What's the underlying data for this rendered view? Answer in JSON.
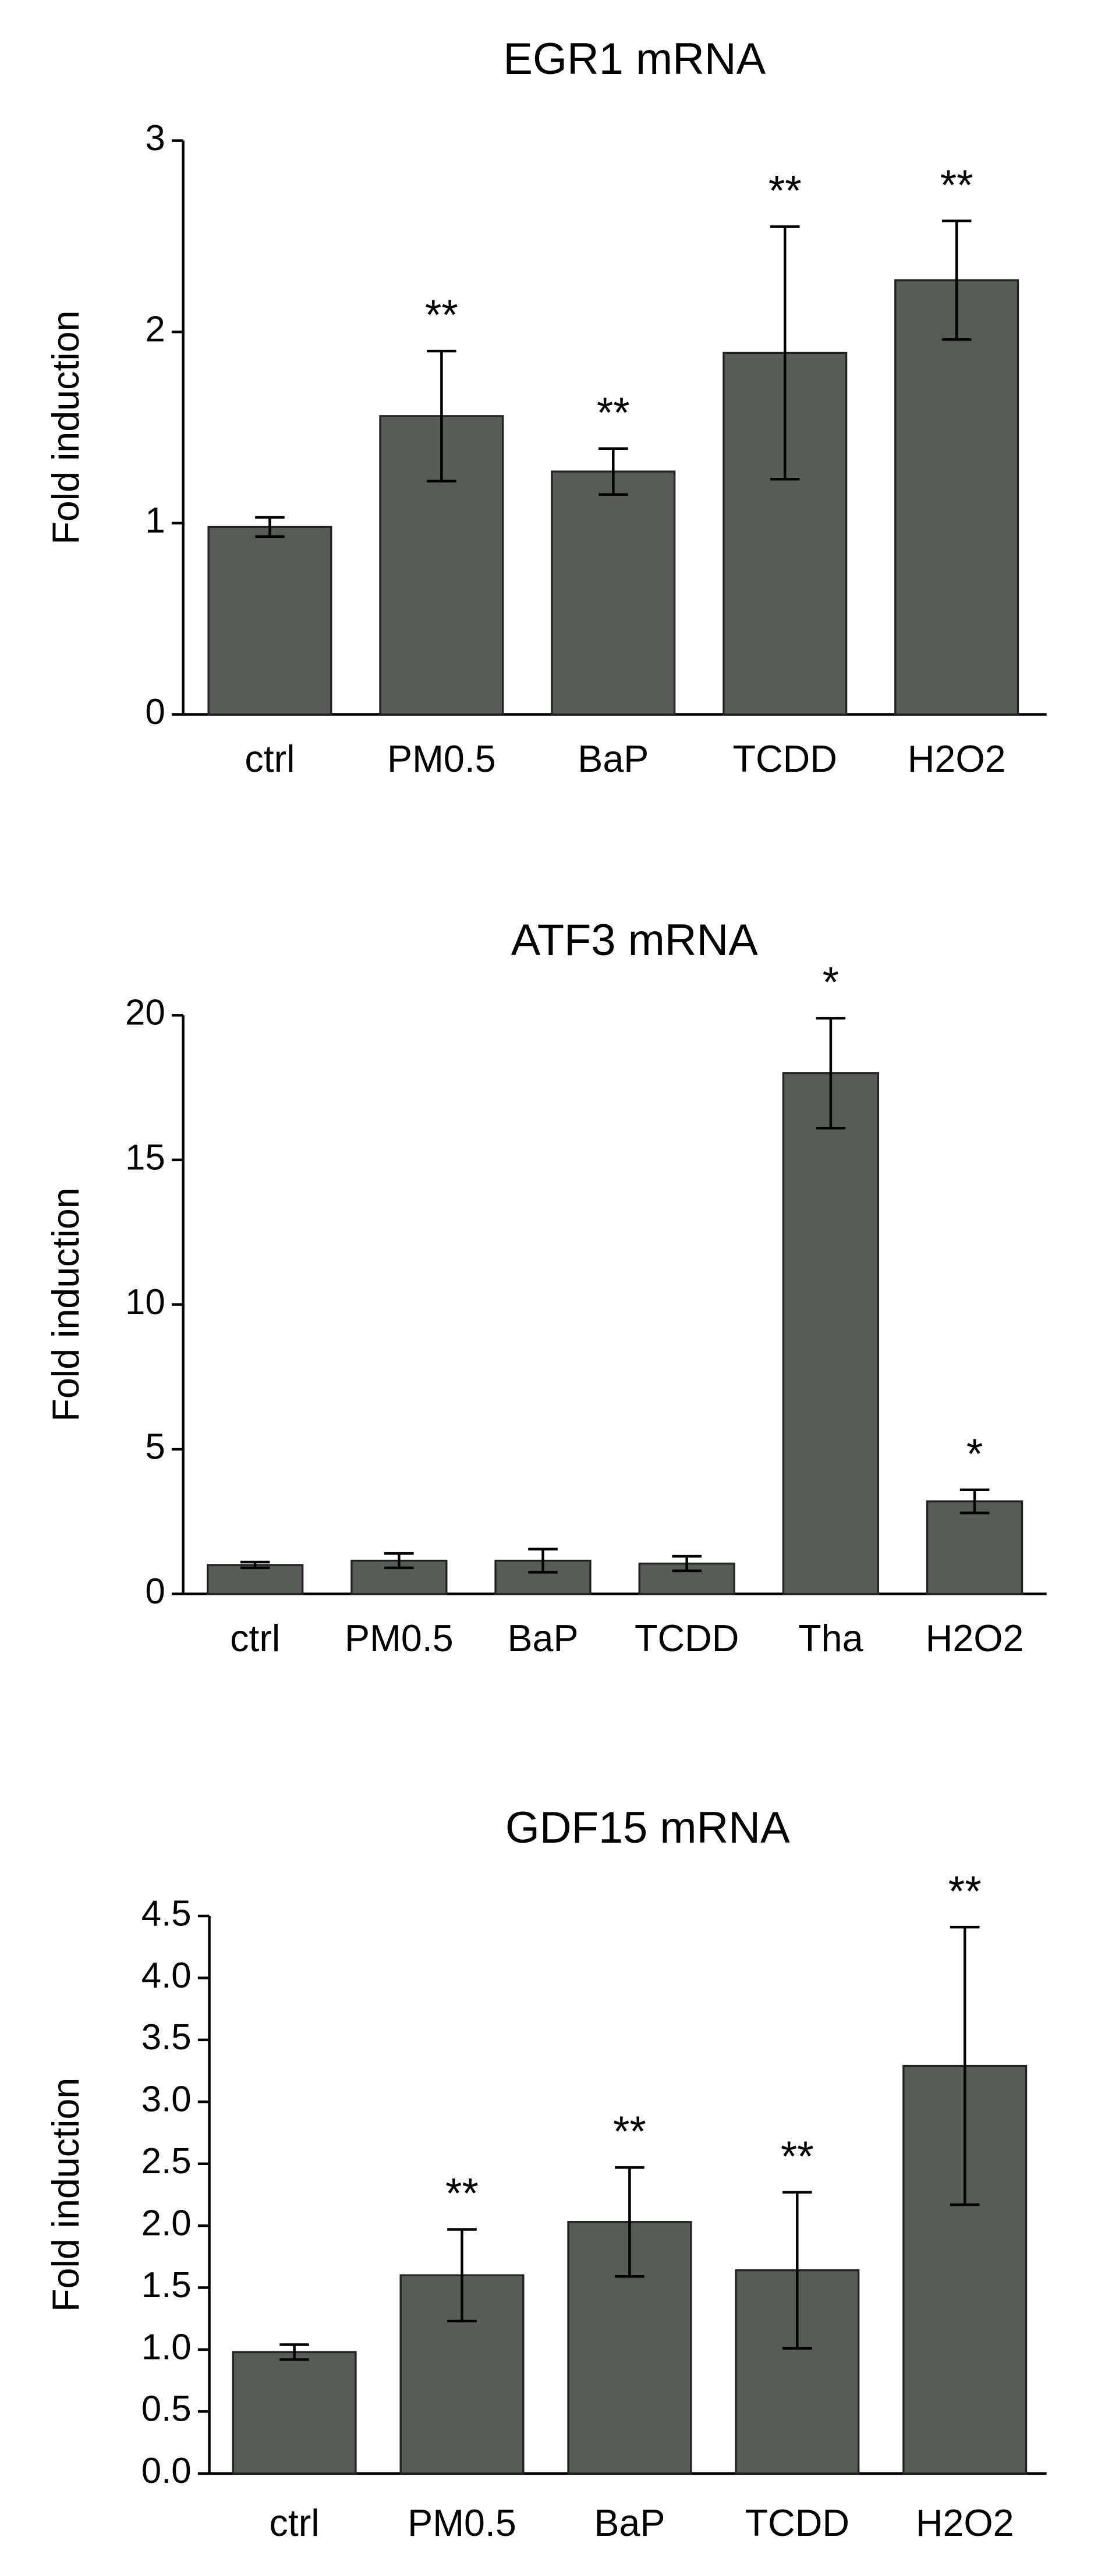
{
  "chart_data": [
    {
      "type": "bar",
      "title": "EGR1 mRNA",
      "y_label": "Fold induction",
      "color": "#585c56",
      "categories": [
        "ctrl",
        "PM0.5",
        "BaP",
        "TCDD",
        "H2O2"
      ],
      "values": [
        0.98,
        1.56,
        1.27,
        1.89,
        2.27
      ],
      "errors": [
        0.05,
        0.34,
        0.12,
        0.66,
        0.31
      ],
      "annotations": [
        null,
        "**",
        "**",
        "**",
        "**"
      ],
      "ylim": [
        0,
        3
      ],
      "yticks": [
        0,
        1,
        2,
        3
      ]
    },
    {
      "type": "bar",
      "title": "ATF3 mRNA",
      "y_label": "Fold induction",
      "color": "#585c56",
      "categories": [
        "ctrl",
        "PM0.5",
        "BaP",
        "TCDD",
        "Tha",
        "H2O2"
      ],
      "values": [
        1.0,
        1.15,
        1.15,
        1.05,
        18.0,
        3.2
      ],
      "errors": [
        0.1,
        0.25,
        0.4,
        0.25,
        1.9,
        0.4
      ],
      "annotations": [
        null,
        null,
        null,
        null,
        "*",
        "*"
      ],
      "ylim": [
        0,
        20
      ],
      "yticks": [
        0,
        5,
        10,
        15,
        20
      ]
    },
    {
      "type": "bar",
      "title": "GDF15 mRNA",
      "y_label": "Fold induction",
      "color": "#585c56",
      "categories": [
        "ctrl",
        "PM0.5",
        "BaP",
        "TCDD",
        "H2O2"
      ],
      "values": [
        0.98,
        1.6,
        2.03,
        1.64,
        3.29
      ],
      "errors": [
        0.06,
        0.37,
        0.44,
        0.63,
        1.12
      ],
      "annotations": [
        null,
        "**",
        "**",
        "**",
        "**"
      ],
      "ylim": [
        0,
        4.5
      ],
      "yticks": [
        {
          "value": 0,
          "label": "0.0"
        },
        0.5,
        {
          "value": 1,
          "label": "1.0"
        },
        1.5,
        {
          "value": 2,
          "label": "2.0"
        },
        2.5,
        {
          "value": 3,
          "label": "3.0"
        },
        3.5,
        {
          "value": 4,
          "label": "4.0"
        },
        4.5
      ]
    }
  ]
}
